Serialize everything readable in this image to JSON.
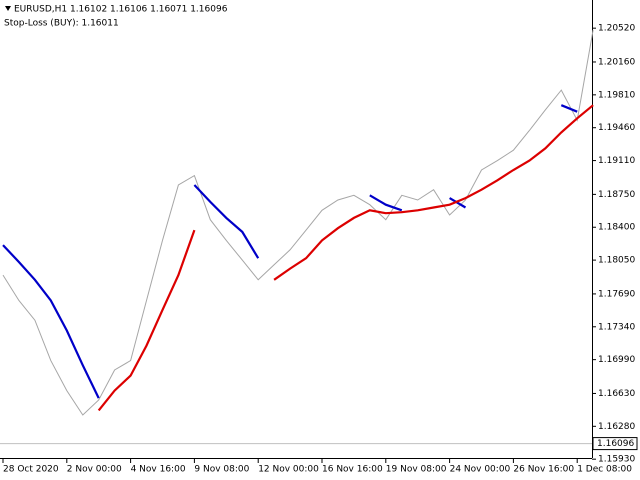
{
  "chart_data": {
    "type": "line",
    "title": "EURUSD,H1  1.16102 1.16106 1.16071 1.16096",
    "subtitle": "Stop-Loss (BUY): 1.16011",
    "categories": [
      "28 Oct 2020",
      null,
      null,
      null,
      "2 Nov 00:00",
      null,
      null,
      null,
      "4 Nov 16:00",
      null,
      null,
      null,
      "9 Nov 08:00",
      null,
      null,
      null,
      "12 Nov 00:00",
      null,
      null,
      null,
      "16 Nov 16:00",
      null,
      null,
      null,
      "19 Nov 08:00",
      null,
      null,
      null,
      "24 Nov 00:00",
      null,
      null,
      null,
      "26 Nov 16:00",
      null,
      null,
      null,
      "1 Dec 08:00",
      null
    ],
    "series": [
      {
        "color": "#a6a6a6",
        "values": [
          1.1789,
          1.1762,
          1.1741,
          1.1698,
          1.1666,
          1.164,
          1.1656,
          1.1688,
          1.1698,
          1.1762,
          1.1826,
          1.1885,
          1.1895,
          1.1848,
          1.1826,
          1.1805,
          1.1784,
          1.18,
          1.1816,
          1.1837,
          1.1858,
          1.1869,
          1.1874,
          1.1864,
          1.1848,
          1.1874,
          1.1869,
          1.188,
          1.1853,
          1.1869,
          1.1901,
          1.1911,
          1.1922,
          1.1943,
          1.1965,
          1.1986,
          1.1954,
          1.205
        ]
      },
      {
        "color": "#0000c8",
        "values": [
          1.1821,
          1.1803,
          1.1784,
          1.1762,
          1.173,
          1.1693,
          1.1658,
          null,
          null,
          null,
          null,
          null,
          1.1885,
          1.1867,
          1.185,
          1.1835,
          1.1807,
          null,
          null,
          null,
          null,
          null,
          null,
          1.1874,
          1.1864,
          1.1858,
          null,
          null,
          1.1871,
          1.1861,
          null,
          null,
          null,
          null,
          null,
          1.197,
          1.1963,
          null
        ]
      },
      {
        "color": "#dc0000",
        "values": [
          null,
          null,
          null,
          null,
          null,
          null,
          1.1645,
          1.1666,
          1.1682,
          1.1714,
          1.1752,
          1.1789,
          1.1837,
          null,
          null,
          null,
          null,
          1.1784,
          1.1796,
          1.1807,
          1.1826,
          1.1839,
          1.185,
          1.1858,
          1.1855,
          1.1856,
          1.1858,
          1.1861,
          1.1864,
          1.1871,
          1.188,
          1.189,
          1.1901,
          1.1911,
          1.1924,
          1.1941,
          1.1956,
          1.197
        ]
      }
    ],
    "current_price": 1.16096,
    "ylim": [
      1.159,
      1.2082
    ],
    "yticks": [
      {
        "value": 1.2052,
        "label": "1.20520"
      },
      {
        "value": 1.2016,
        "label": "1.20160"
      },
      {
        "value": 1.1981,
        "label": "1.19810"
      },
      {
        "value": 1.1946,
        "label": "1.19460"
      },
      {
        "value": 1.1911,
        "label": "1.19110"
      },
      {
        "value": 1.1875,
        "label": "1.18750"
      },
      {
        "value": 1.184,
        "label": "1.18400"
      },
      {
        "value": 1.1805,
        "label": "1.18050"
      },
      {
        "value": 1.1769,
        "label": "1.17690"
      },
      {
        "value": 1.1734,
        "label": "1.17340"
      },
      {
        "value": 1.1699,
        "label": "1.16990"
      },
      {
        "value": 1.1663,
        "label": "1.16630"
      },
      {
        "value": 1.1628,
        "label": "1.16280"
      },
      {
        "value": 1.1593,
        "label": "1.15930"
      }
    ]
  }
}
